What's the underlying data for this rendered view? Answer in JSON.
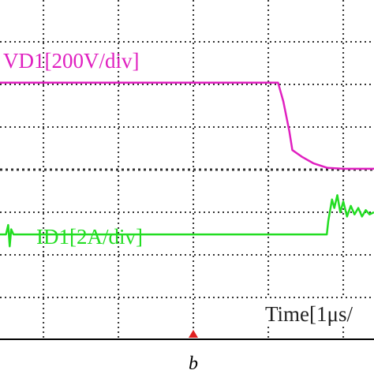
{
  "chart_data": {
    "type": "line",
    "series": [
      {
        "name": "VD1[200V/div]",
        "color": "#e020c0",
        "x": [
          -2.58,
          0,
          1.13,
          1.2,
          1.28,
          1.32,
          1.45,
          1.6,
          1.79,
          2.0,
          2.41
        ],
        "values": [
          2.04,
          2.04,
          2.04,
          1.6,
          0.9,
          0.46,
          0.3,
          0.15,
          0.04,
          0.02,
          0.02
        ]
      },
      {
        "name": "ID1[2A/div]",
        "color": "#22dd22",
        "x": [
          -2.58,
          -2.5,
          -2.47,
          -2.45,
          -2.43,
          -2.4,
          -2.3,
          0,
          1.0,
          1.78,
          1.8,
          1.85,
          1.88,
          1.92,
          1.96,
          2.0,
          2.05,
          2.1,
          2.15,
          2.2,
          2.25,
          2.3,
          2.35,
          2.41
        ],
        "values": [
          -1.52,
          -1.52,
          -1.3,
          -1.8,
          -1.4,
          -1.52,
          -1.52,
          -1.52,
          -1.52,
          -1.52,
          -1.2,
          -0.7,
          -0.9,
          -0.6,
          -1.0,
          -0.75,
          -1.1,
          -0.85,
          -1.05,
          -0.9,
          -1.1,
          -0.95,
          -1.05,
          -1.0
        ]
      }
    ],
    "x_label": "Time[1μs/",
    "caption": "b",
    "xlim": [
      -2.58,
      2.41
    ],
    "ylim": [
      -3.98,
      3.98
    ],
    "xticks": [
      -2,
      -1,
      0,
      1,
      2
    ],
    "yticks": [
      -3,
      -2,
      -1,
      0,
      1,
      2,
      3
    ],
    "grid": true
  }
}
